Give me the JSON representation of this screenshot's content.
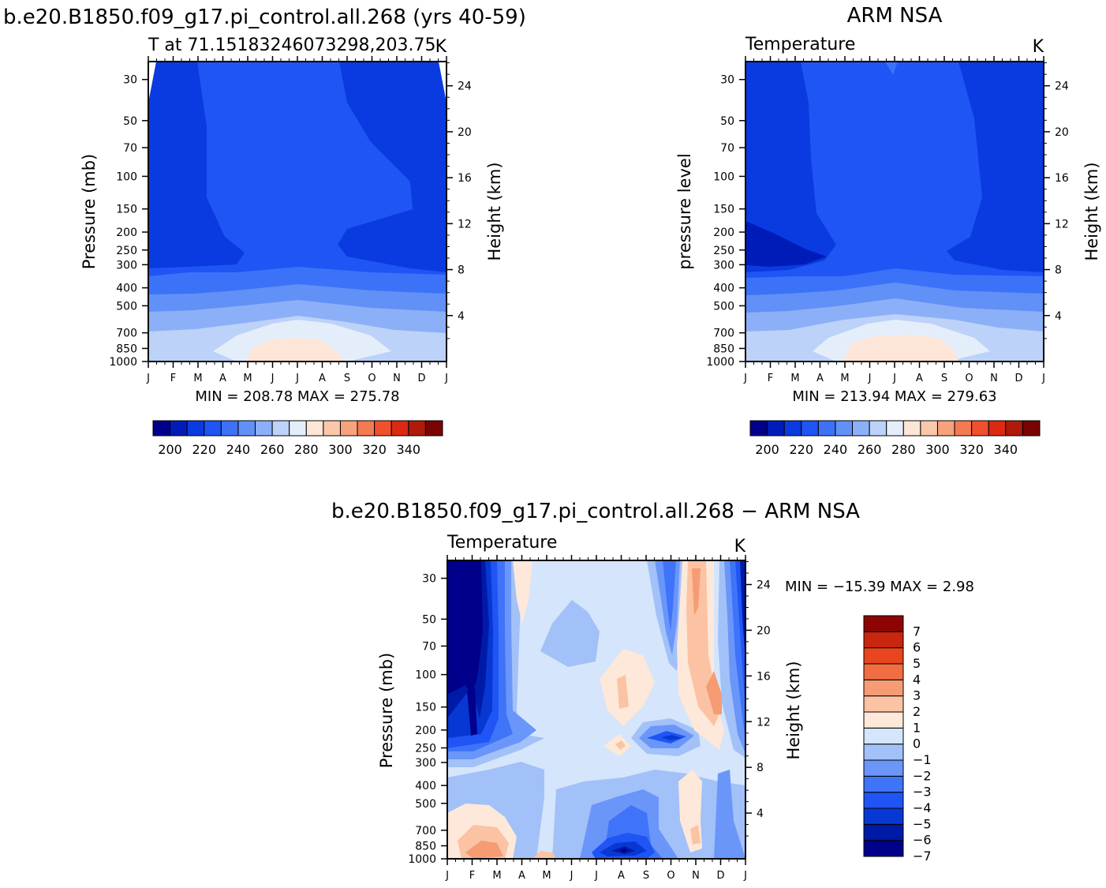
{
  "figure": {
    "months": [
      "J",
      "F",
      "M",
      "A",
      "M",
      "J",
      "J",
      "A",
      "S",
      "O",
      "N",
      "D",
      "J"
    ],
    "pressure_ticks": [
      30,
      50,
      70,
      100,
      150,
      200,
      250,
      300,
      400,
      500,
      700,
      850,
      1000
    ],
    "height_ticks": [
      24,
      20,
      16,
      12,
      8,
      4
    ]
  },
  "chart_data": [
    {
      "type": "heatmap",
      "title": "b.e20.B1850.f09_g17.pi_control.all.268 (yrs 40-59)",
      "subtitle_left": "T at 71.15183246073298,203.75",
      "subtitle_right": "K",
      "xlabel": "",
      "ylabel": "Pressure (mb)",
      "ylabel_right": "Height (km)",
      "x_categories": [
        "J",
        "F",
        "M",
        "A",
        "M",
        "J",
        "J",
        "A",
        "S",
        "O",
        "N",
        "D",
        "J"
      ],
      "y_pressure_mb": [
        30,
        50,
        70,
        100,
        150,
        200,
        250,
        300,
        400,
        500,
        700,
        850,
        1000
      ],
      "y_height_km": [
        24,
        20,
        16,
        12,
        8,
        4
      ],
      "minmax_text": "MIN = 208.78 MAX = 275.78",
      "colorbar_labels": [
        "200",
        "220",
        "240",
        "260",
        "280",
        "300",
        "320",
        "340"
      ],
      "levels": [
        190,
        200,
        210,
        220,
        230,
        240,
        250,
        260,
        270,
        280,
        290,
        300,
        310,
        320,
        330,
        340,
        350
      ]
    },
    {
      "type": "heatmap",
      "title": "ARM NSA",
      "subtitle_left": "Temperature",
      "subtitle_right": "K",
      "xlabel": "",
      "ylabel": "pressure level",
      "ylabel_right": "Height (km)",
      "x_categories": [
        "J",
        "F",
        "M",
        "A",
        "M",
        "J",
        "J",
        "A",
        "S",
        "O",
        "N",
        "D",
        "J"
      ],
      "y_pressure_mb": [
        30,
        50,
        70,
        100,
        150,
        200,
        250,
        300,
        400,
        500,
        700,
        850,
        1000
      ],
      "y_height_km": [
        24,
        20,
        16,
        12,
        8,
        4
      ],
      "minmax_text": "MIN = 213.94 MAX = 279.63",
      "colorbar_labels": [
        "200",
        "220",
        "240",
        "260",
        "280",
        "300",
        "320",
        "340"
      ],
      "levels": [
        190,
        200,
        210,
        220,
        230,
        240,
        250,
        260,
        270,
        280,
        290,
        300,
        310,
        320,
        330,
        340,
        350
      ]
    },
    {
      "type": "heatmap",
      "title": "b.e20.B1850.f09_g17.pi_control.all.268 − ARM NSA",
      "subtitle_left": "Temperature",
      "subtitle_right": "K",
      "xlabel": "",
      "ylabel": "Pressure (mb)",
      "ylabel_right": "Height (km)",
      "x_categories": [
        "J",
        "F",
        "M",
        "A",
        "M",
        "J",
        "J",
        "A",
        "S",
        "O",
        "N",
        "D",
        "J"
      ],
      "y_pressure_mb": [
        30,
        50,
        70,
        100,
        150,
        200,
        250,
        300,
        400,
        500,
        700,
        850,
        1000
      ],
      "y_height_km": [
        24,
        20,
        16,
        12,
        8,
        4
      ],
      "minmax_text": "MIN = −15.39 MAX =    2.98",
      "colorbar_labels": [
        "7",
        "6",
        "5",
        "4",
        "3",
        "2",
        "1",
        "0",
        "−1",
        "−2",
        "−3",
        "−4",
        "−5",
        "−6",
        "−7"
      ],
      "levels": [
        -7,
        -6,
        -5,
        -4,
        -3,
        -2,
        -1,
        0,
        1,
        2,
        3,
        4,
        5,
        6,
        7
      ]
    }
  ],
  "colors": {
    "tempScale": [
      "#00008b",
      "#001cb8",
      "#0a3be0",
      "#1f55f5",
      "#3c72f7",
      "#6190f7",
      "#8cb0f7",
      "#bcd2f8",
      "#e4eefb",
      "#fde6d8",
      "#fbc7aa",
      "#f7a27c",
      "#f47a52",
      "#f0502c",
      "#dc2a12",
      "#b01a0a",
      "#7a0404"
    ],
    "diffScale": [
      "#00008b",
      "#001aa8",
      "#0838d4",
      "#1f55f5",
      "#3f74f9",
      "#6a96fa",
      "#a2c1f8",
      "#d5e5fb",
      "#fde8d9",
      "#fbc3a3",
      "#f59c74",
      "#f16d42",
      "#e8461e",
      "#c8260e",
      "#8d0404"
    ]
  }
}
